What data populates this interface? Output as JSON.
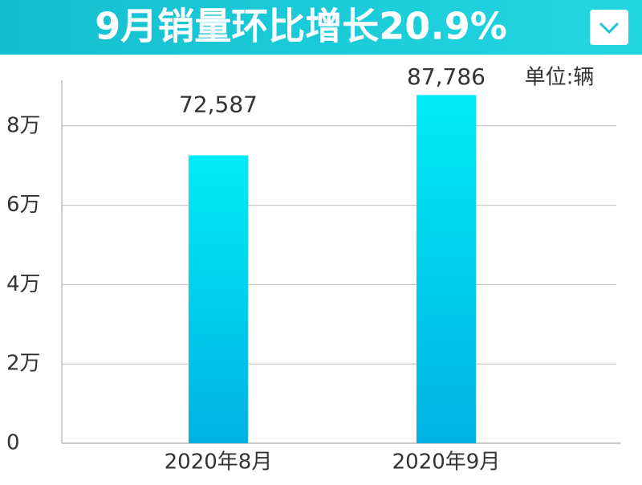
{
  "chart_data": {
    "type": "bar",
    "title": "9月销量环比增长20.9%",
    "unit_note": "单位:辆",
    "categories": [
      "2020年8月",
      "2020年9月"
    ],
    "values": [
      72587,
      87786
    ],
    "value_labels": [
      "72,587",
      "87,786"
    ],
    "ylim": [
      0,
      91500
    ],
    "yticks": [
      0,
      {
        "value": 20000,
        "label": "2万"
      },
      {
        "value": 40000,
        "label": "4万"
      },
      {
        "value": 60000,
        "label": "6万"
      },
      {
        "value": 80000,
        "label": "8万"
      }
    ],
    "grid": true
  }
}
